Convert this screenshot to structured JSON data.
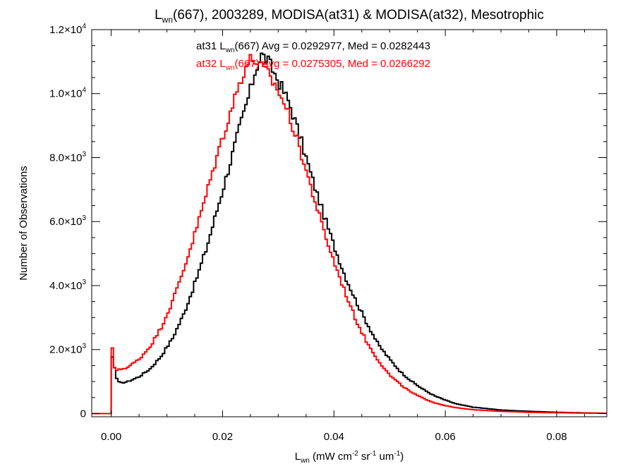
{
  "chart_data": {
    "type": "line",
    "title_parts": [
      "L",
      "wn",
      "(667), 2003289, MODISA(at31) & MODISA(at32), Mesotrophic"
    ],
    "xlabel_parts": [
      "L",
      "wn",
      " (mW cm",
      "-2",
      " sr",
      "-1",
      " um",
      "-1",
      ")"
    ],
    "ylabel": "Number of Observations",
    "xlim": [
      -0.0035,
      0.089
    ],
    "ylim": [
      -100,
      12000
    ],
    "x_ticks": [
      0.0,
      0.02,
      0.04,
      0.06,
      0.08
    ],
    "x_tick_labels": [
      "0.00",
      "0.02",
      "0.04",
      "0.06",
      "0.08"
    ],
    "y_ticks": [
      {
        "value": 0,
        "mantissa": "0",
        "exp": ""
      },
      {
        "value": 2000,
        "mantissa": "2.0×10",
        "exp": "3"
      },
      {
        "value": 4000,
        "mantissa": "4.0×10",
        "exp": "3"
      },
      {
        "value": 6000,
        "mantissa": "6.0×10",
        "exp": "3"
      },
      {
        "value": 8000,
        "mantissa": "8.0×10",
        "exp": "3"
      },
      {
        "value": 10000,
        "mantissa": "1.0×10",
        "exp": "4"
      },
      {
        "value": 12000,
        "mantissa": "1.2×10",
        "exp": "4"
      }
    ],
    "step_width": 0.0004,
    "series": [
      {
        "name": "at31",
        "color": "#000000",
        "legend_parts": [
          "at31 L",
          "wn",
          "(667) Avg = 0.0292977, Med = 0.0282443"
        ],
        "points": [
          [
            -0.0035,
            0
          ],
          [
            0.0,
            0
          ],
          [
            0.0001,
            1850
          ],
          [
            0.001,
            1100
          ],
          [
            0.0015,
            950
          ],
          [
            0.003,
            1000
          ],
          [
            0.005,
            1150
          ],
          [
            0.007,
            1400
          ],
          [
            0.009,
            1800
          ],
          [
            0.011,
            2350
          ],
          [
            0.013,
            3100
          ],
          [
            0.015,
            4050
          ],
          [
            0.017,
            5100
          ],
          [
            0.019,
            6350
          ],
          [
            0.021,
            7600
          ],
          [
            0.023,
            8900
          ],
          [
            0.025,
            10100
          ],
          [
            0.026,
            10800
          ],
          [
            0.027,
            11200
          ],
          [
            0.028,
            11050
          ],
          [
            0.029,
            10750
          ],
          [
            0.03,
            10400
          ],
          [
            0.032,
            9700
          ],
          [
            0.034,
            8600
          ],
          [
            0.036,
            7400
          ],
          [
            0.038,
            6300
          ],
          [
            0.04,
            5250
          ],
          [
            0.042,
            4300
          ],
          [
            0.044,
            3500
          ],
          [
            0.046,
            2800
          ],
          [
            0.048,
            2150
          ],
          [
            0.05,
            1700
          ],
          [
            0.052,
            1300
          ],
          [
            0.054,
            1000
          ],
          [
            0.056,
            760
          ],
          [
            0.058,
            560
          ],
          [
            0.06,
            420
          ],
          [
            0.062,
            300
          ],
          [
            0.065,
            200
          ],
          [
            0.07,
            110
          ],
          [
            0.075,
            70
          ],
          [
            0.08,
            40
          ],
          [
            0.085,
            20
          ],
          [
            0.089,
            10
          ]
        ]
      },
      {
        "name": "at32",
        "color": "#ff0000",
        "legend_parts": [
          "at32 L",
          "wn",
          "(667) Avg = 0.0275305, Med = 0.0266292"
        ],
        "points": [
          [
            -0.0035,
            0
          ],
          [
            0.0,
            0
          ],
          [
            0.0001,
            2600
          ],
          [
            0.0003,
            1500
          ],
          [
            0.001,
            1350
          ],
          [
            0.003,
            1450
          ],
          [
            0.005,
            1700
          ],
          [
            0.007,
            2100
          ],
          [
            0.009,
            2700
          ],
          [
            0.011,
            3500
          ],
          [
            0.013,
            4500
          ],
          [
            0.015,
            5600
          ],
          [
            0.017,
            6800
          ],
          [
            0.019,
            8050
          ],
          [
            0.021,
            9200
          ],
          [
            0.023,
            10300
          ],
          [
            0.024,
            10800
          ],
          [
            0.025,
            11050
          ],
          [
            0.026,
            11050
          ],
          [
            0.027,
            10800
          ],
          [
            0.028,
            10650
          ],
          [
            0.03,
            10100
          ],
          [
            0.032,
            9300
          ],
          [
            0.034,
            8200
          ],
          [
            0.036,
            7000
          ],
          [
            0.038,
            5800
          ],
          [
            0.04,
            4750
          ],
          [
            0.042,
            3800
          ],
          [
            0.044,
            2900
          ],
          [
            0.046,
            2200
          ],
          [
            0.048,
            1650
          ],
          [
            0.05,
            1200
          ],
          [
            0.052,
            900
          ],
          [
            0.054,
            650
          ],
          [
            0.056,
            480
          ],
          [
            0.058,
            340
          ],
          [
            0.06,
            250
          ],
          [
            0.062,
            180
          ],
          [
            0.065,
            120
          ],
          [
            0.07,
            70
          ],
          [
            0.075,
            40
          ],
          [
            0.08,
            25
          ],
          [
            0.085,
            15
          ],
          [
            0.089,
            8
          ]
        ]
      }
    ]
  }
}
